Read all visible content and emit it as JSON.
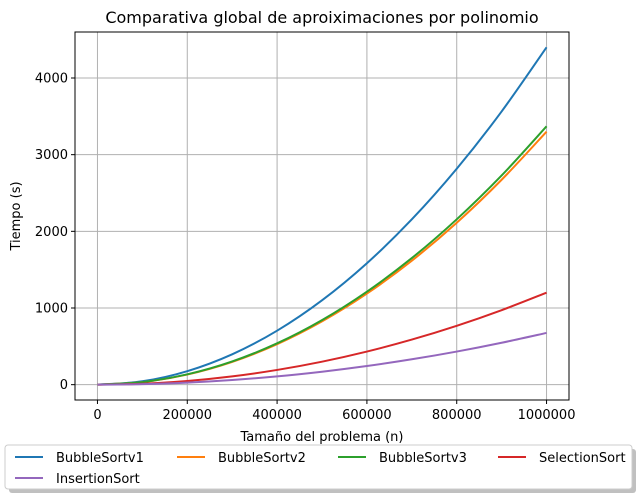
{
  "chart_data": {
    "type": "line",
    "title": "Comparativa global de aproiximaciones por polinomio",
    "xlabel": "Tamaño del problema (n)",
    "ylabel": "Tiempo (s)",
    "xlim": [
      -50000,
      1050000
    ],
    "ylim": [
      -200,
      4600
    ],
    "xticks": [
      0,
      200000,
      400000,
      600000,
      800000,
      1000000
    ],
    "xtick_labels": [
      "0",
      "200000",
      "400000",
      "600000",
      "800000",
      "1000000"
    ],
    "yticks": [
      0,
      1000,
      2000,
      3000,
      4000
    ],
    "ytick_labels": [
      "0",
      "1000",
      "2000",
      "3000",
      "4000"
    ],
    "grid": true,
    "legend_position": "bottom-outside",
    "x": [
      0,
      100000,
      200000,
      300000,
      400000,
      500000,
      600000,
      700000,
      800000,
      900000,
      1000000
    ],
    "series": [
      {
        "name": "BubbleSortv1",
        "color": "#1f77b4",
        "values": [
          0,
          44,
          176,
          396,
          704,
          1100,
          1584,
          2156,
          2816,
          3564,
          4400
        ]
      },
      {
        "name": "BubbleSortv2",
        "color": "#ff7f0e",
        "values": [
          0,
          33,
          132,
          297,
          528,
          825,
          1188,
          1617,
          2112,
          2673,
          3300
        ]
      },
      {
        "name": "BubbleSortv3",
        "color": "#2ca02c",
        "values": [
          0,
          34,
          135,
          303,
          539,
          842,
          1213,
          1651,
          2157,
          2729,
          3370
        ]
      },
      {
        "name": "SelectionSort",
        "color": "#d62728",
        "values": [
          0,
          12,
          48,
          108,
          192,
          300,
          432,
          588,
          768,
          972,
          1200
        ]
      },
      {
        "name": "InsertionSort",
        "color": "#9467bd",
        "values": [
          0,
          7,
          27,
          61,
          108,
          169,
          243,
          331,
          432,
          547,
          675
        ]
      }
    ]
  }
}
